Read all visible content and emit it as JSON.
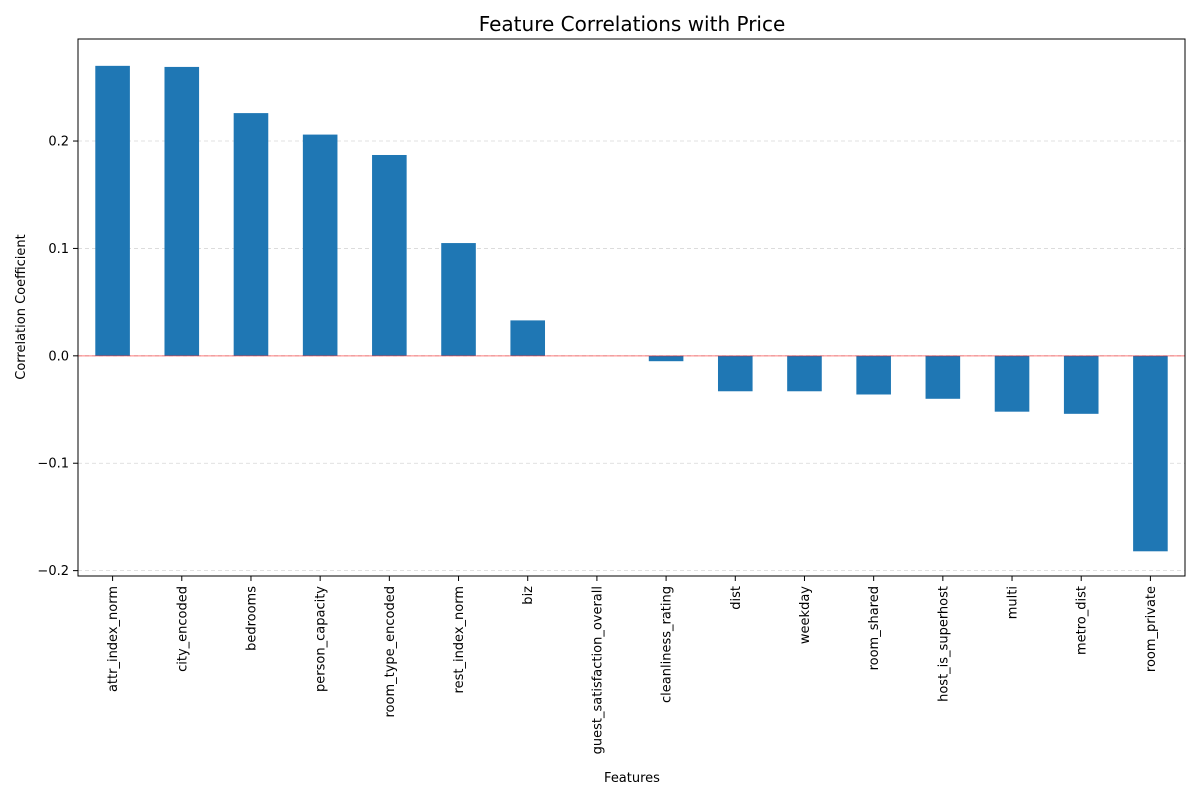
{
  "chart_data": {
    "type": "bar",
    "title": "Feature Correlations with Price",
    "xlabel": "Features",
    "ylabel": "Correlation Coefficient",
    "ylim": [
      -0.205,
      0.295
    ],
    "yticks": [
      -0.2,
      -0.1,
      0.0,
      0.1,
      0.2
    ],
    "ytick_labels": [
      "−0.2",
      "−0.1",
      "0.0",
      "0.1",
      "0.2"
    ],
    "grid": "y-dashed",
    "reference_line": {
      "y": 0,
      "color": "#ff0000"
    },
    "bar_color": "#1f77b4",
    "categories": [
      "attr_index_norm",
      "city_encoded",
      "bedrooms",
      "person_capacity",
      "room_type_encoded",
      "rest_index_norm",
      "biz",
      "guest_satisfaction_overall",
      "cleanliness_rating",
      "dist",
      "weekday",
      "room_shared",
      "host_is_superhost",
      "multi",
      "metro_dist",
      "room_private"
    ],
    "values": [
      0.27,
      0.269,
      0.226,
      0.206,
      0.187,
      0.105,
      0.033,
      0.0,
      -0.005,
      -0.033,
      -0.033,
      -0.036,
      -0.04,
      -0.052,
      -0.054,
      -0.182
    ]
  }
}
